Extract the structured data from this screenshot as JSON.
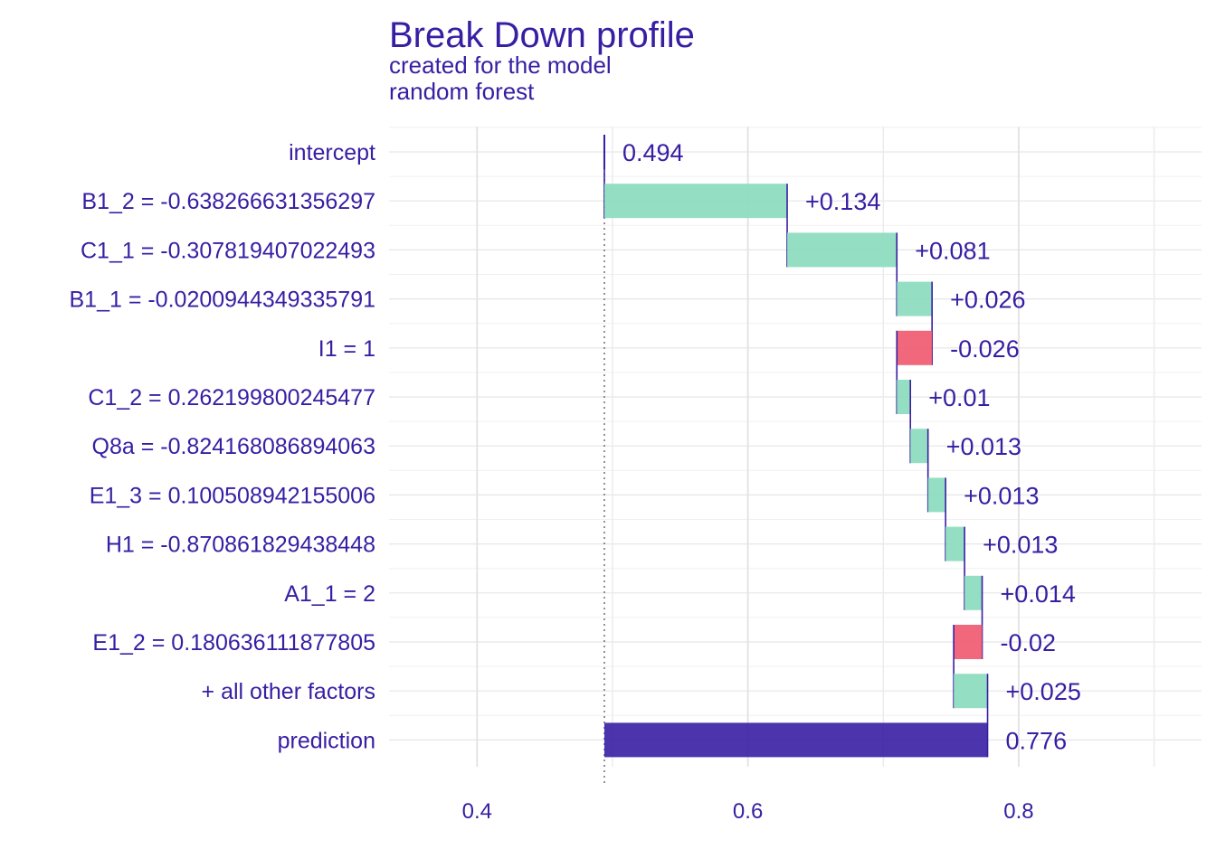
{
  "chart_data": {
    "type": "bar",
    "subtype": "waterfall",
    "title": "Break Down profile",
    "subtitle_lines": [
      "created for the  model",
      "random  forest"
    ],
    "xlabel": "",
    "ylabel": "",
    "xlim": [
      0.335,
      0.935
    ],
    "xticks": [
      0.4,
      0.6,
      0.8
    ],
    "xtick_labels": [
      "0.4",
      "0.6",
      "0.8"
    ],
    "grid": true,
    "baseline": 0.494,
    "colors": {
      "positive": "#8bdcbe",
      "negative": "#f05a71",
      "prediction": "#371ea3",
      "text": "#371ea3",
      "grid": "#e6e6e6"
    },
    "rows": [
      {
        "variable": "intercept",
        "start": 0.494,
        "end": 0.494,
        "label": "0.494",
        "kind": "intercept"
      },
      {
        "variable": "B1_2 = -0.638266631356297",
        "start": 0.494,
        "end": 0.629,
        "label": "+0.134",
        "kind": "positive"
      },
      {
        "variable": "C1_1 = -0.307819407022493",
        "start": 0.629,
        "end": 0.71,
        "label": "+0.081",
        "kind": "positive"
      },
      {
        "variable": "B1_1 = -0.0200944349335791",
        "start": 0.71,
        "end": 0.736,
        "label": "+0.026",
        "kind": "positive"
      },
      {
        "variable": "I1 = 1",
        "start": 0.736,
        "end": 0.71,
        "label": "-0.026",
        "kind": "negative"
      },
      {
        "variable": "C1_2 = 0.262199800245477",
        "start": 0.71,
        "end": 0.72,
        "label": "+0.01",
        "kind": "positive"
      },
      {
        "variable": "Q8a = -0.824168086894063",
        "start": 0.72,
        "end": 0.733,
        "label": "+0.013",
        "kind": "positive"
      },
      {
        "variable": "E1_3 = 0.100508942155006",
        "start": 0.733,
        "end": 0.746,
        "label": "+0.013",
        "kind": "positive"
      },
      {
        "variable": "H1 = -0.870861829438448",
        "start": 0.746,
        "end": 0.76,
        "label": "+0.013",
        "kind": "positive"
      },
      {
        "variable": "A1_1 = 2",
        "start": 0.76,
        "end": 0.773,
        "label": "+0.014",
        "kind": "positive"
      },
      {
        "variable": "E1_2 = 0.180636111877805",
        "start": 0.773,
        "end": 0.752,
        "label": "-0.02",
        "kind": "negative"
      },
      {
        "variable": "+ all other factors",
        "start": 0.752,
        "end": 0.777,
        "label": "+0.025",
        "kind": "positive"
      },
      {
        "variable": "prediction",
        "start": 0.494,
        "end": 0.777,
        "label": "0.776",
        "kind": "prediction"
      }
    ]
  }
}
